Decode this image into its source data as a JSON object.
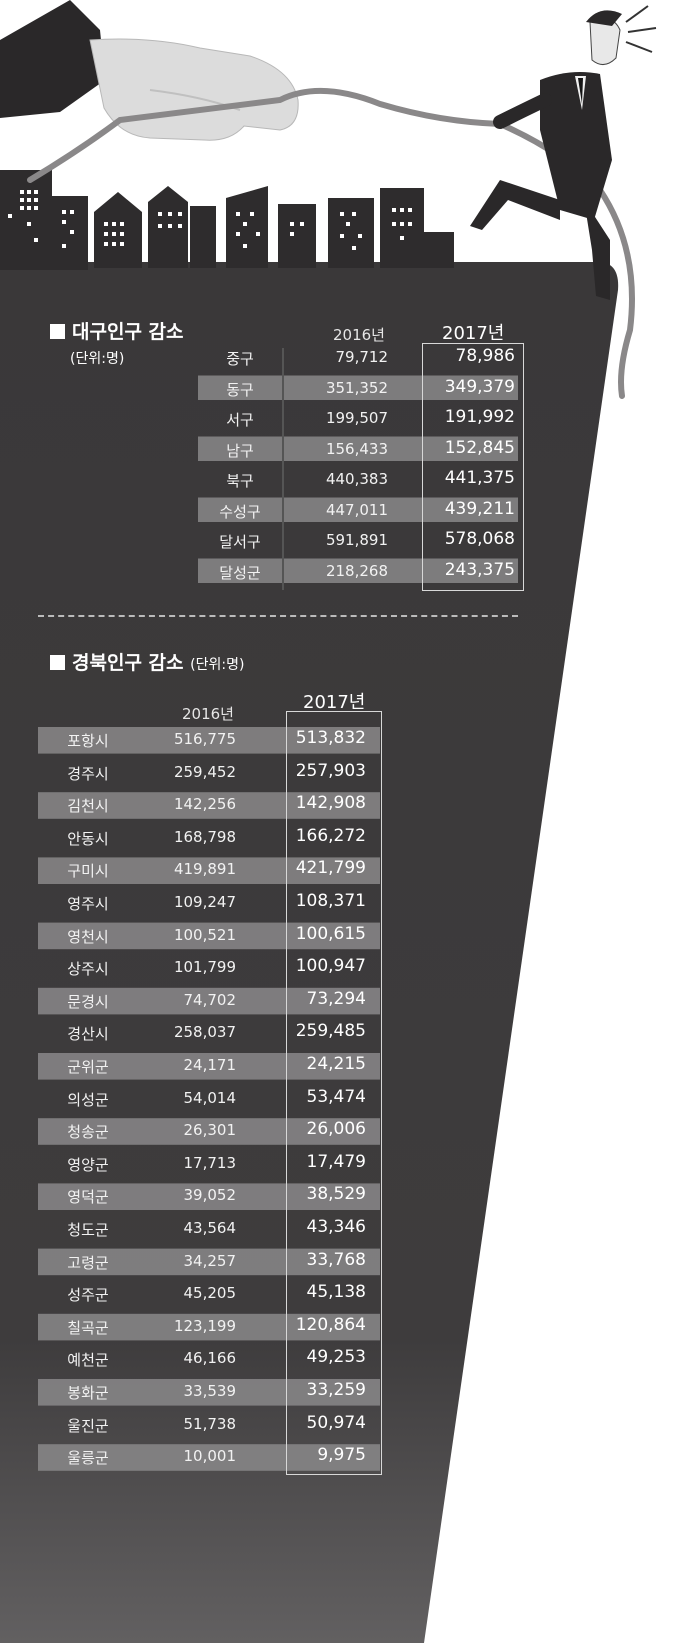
{
  "daegu": {
    "title": "대구인구 감소",
    "unit": "(단위:명)",
    "year_2016": "2016년",
    "year_2017": "2017년",
    "rows": [
      {
        "name": "중구",
        "v2016": "79,712",
        "v2017": "78,986"
      },
      {
        "name": "동구",
        "v2016": "351,352",
        "v2017": "349,379"
      },
      {
        "name": "서구",
        "v2016": "199,507",
        "v2017": "191,992"
      },
      {
        "name": "남구",
        "v2016": "156,433",
        "v2017": "152,845"
      },
      {
        "name": "북구",
        "v2016": "440,383",
        "v2017": "441,375"
      },
      {
        "name": "수성구",
        "v2016": "447,011",
        "v2017": "439,211"
      },
      {
        "name": "달서구",
        "v2016": "591,891",
        "v2017": "578,068"
      },
      {
        "name": "달성군",
        "v2016": "218,268",
        "v2017": "243,375"
      }
    ]
  },
  "gyeongbuk": {
    "title": "경북인구 감소",
    "unit": "(단위:명)",
    "year_2016": "2016년",
    "year_2017": "2017년",
    "rows": [
      {
        "name": "포항시",
        "v2016": "516,775",
        "v2017": "513,832"
      },
      {
        "name": "경주시",
        "v2016": "259,452",
        "v2017": "257,903"
      },
      {
        "name": "김천시",
        "v2016": "142,256",
        "v2017": "142,908"
      },
      {
        "name": "안동시",
        "v2016": "168,798",
        "v2017": "166,272"
      },
      {
        "name": "구미시",
        "v2016": "419,891",
        "v2017": "421,799"
      },
      {
        "name": "영주시",
        "v2016": "109,247",
        "v2017": "108,371"
      },
      {
        "name": "영천시",
        "v2016": "100,521",
        "v2017": "100,615"
      },
      {
        "name": "상주시",
        "v2016": "101,799",
        "v2017": "100,947"
      },
      {
        "name": "문경시",
        "v2016": "74,702",
        "v2017": "73,294"
      },
      {
        "name": "경산시",
        "v2016": "258,037",
        "v2017": "259,485"
      },
      {
        "name": "군위군",
        "v2016": "24,171",
        "v2017": "24,215"
      },
      {
        "name": "의성군",
        "v2016": "54,014",
        "v2017": "53,474"
      },
      {
        "name": "청송군",
        "v2016": "26,301",
        "v2017": "26,006"
      },
      {
        "name": "영양군",
        "v2016": "17,713",
        "v2017": "17,479"
      },
      {
        "name": "영덕군",
        "v2016": "39,052",
        "v2017": "38,529"
      },
      {
        "name": "청도군",
        "v2016": "43,564",
        "v2017": "43,346"
      },
      {
        "name": "고령군",
        "v2016": "34,257",
        "v2017": "33,768"
      },
      {
        "name": "성주군",
        "v2016": "45,205",
        "v2017": "45,138"
      },
      {
        "name": "칠곡군",
        "v2016": "123,199",
        "v2017": "120,864"
      },
      {
        "name": "예천군",
        "v2016": "46,166",
        "v2017": "49,253"
      },
      {
        "name": "봉화군",
        "v2016": "33,539",
        "v2017": "33,259"
      },
      {
        "name": "울진군",
        "v2016": "51,738",
        "v2017": "50,974"
      },
      {
        "name": "울릉군",
        "v2016": "10,001",
        "v2017": "9,975"
      }
    ]
  },
  "colors": {
    "panel": "#3a3839",
    "panel_bottom": "#5a5859",
    "stripe": "#8a8889",
    "text": "#ffffff"
  }
}
